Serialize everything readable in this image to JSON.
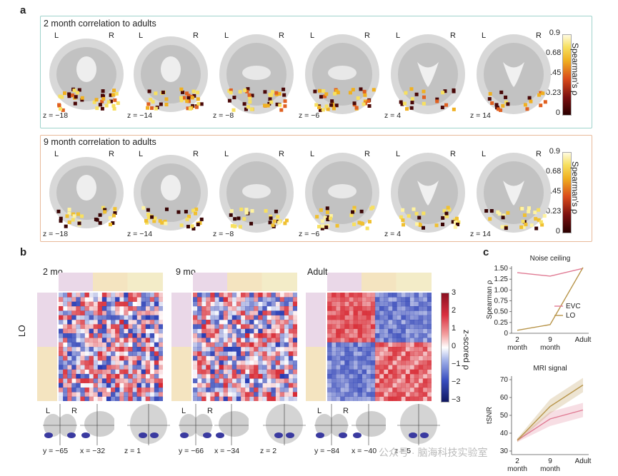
{
  "panels": {
    "a": "a",
    "b": "b",
    "c": "c"
  },
  "panel_a": {
    "box1_title": "2 month correlation to adults",
    "box2_title": "9 month correlation to adults",
    "L": "L",
    "R": "R",
    "slices": [
      "z = −18",
      "z = −14",
      "z = −8",
      "z = −6",
      "z = 4",
      "z = 14"
    ],
    "colorbar_label": "Spearman's ρ",
    "colorbar_ticks": [
      "0.9",
      "0.68",
      "0.45",
      "0.23",
      "0"
    ]
  },
  "panel_b": {
    "labels": [
      "2 mo",
      "9 mo",
      "Adult"
    ],
    "row_label": "LO",
    "colorbar_label": "z-scored ρ",
    "colorbar_ticks": [
      "3",
      "2",
      "1",
      "0",
      "−1",
      "−2",
      "−3"
    ],
    "coords": [
      [
        "y = −65",
        "x = −32",
        "z = 1"
      ],
      [
        "y = −66",
        "x = −34",
        "z = 2"
      ],
      [
        "y = −84",
        "x = −40",
        "z = 5"
      ]
    ]
  },
  "panel_c": {
    "title1": "Noise ceiling",
    "title2": "MRI signal",
    "ylabel1": "Spearman ρ",
    "ylabel2": "tSNR",
    "legend": [
      "EVC",
      "LO"
    ],
    "x_ticks": [
      "2 month",
      "9 month",
      "Adult"
    ]
  },
  "chart_data": [
    {
      "type": "line",
      "title": "Noise ceiling",
      "ylabel": "Spearman ρ",
      "xlabel": "",
      "categories": [
        "2 month",
        "9 month",
        "Adult"
      ],
      "yticks": [
        "1.50",
        "1.25",
        "1.00",
        "0.75",
        "0.50",
        "0.25",
        "0"
      ],
      "ylim": [
        0,
        1.55
      ],
      "series": [
        {
          "name": "EVC",
          "color": "#e07a93",
          "values": [
            1.4,
            1.32,
            1.5
          ]
        },
        {
          "name": "LO",
          "color": "#b8954a",
          "values": [
            0.07,
            0.2,
            1.52
          ]
        }
      ]
    },
    {
      "type": "line",
      "title": "MRI signal",
      "ylabel": "tSNR",
      "xlabel": "",
      "categories": [
        "2 month",
        "9 month",
        "Adult"
      ],
      "yticks": [
        "70",
        "60",
        "50",
        "40",
        "30"
      ],
      "ylim": [
        28,
        72
      ],
      "series": [
        {
          "name": "EVC",
          "color": "#e07a93",
          "values": [
            36,
            48,
            53
          ]
        },
        {
          "name": "LO",
          "color": "#b8954a",
          "values": [
            36,
            55,
            67
          ]
        }
      ]
    }
  ],
  "watermark": "公众号 · 脑海科技实验室",
  "colors": {
    "box1": "#9fd3cc",
    "box2": "#e8b99a",
    "accent": "#e07a93",
    "lo": "#b8954a"
  }
}
